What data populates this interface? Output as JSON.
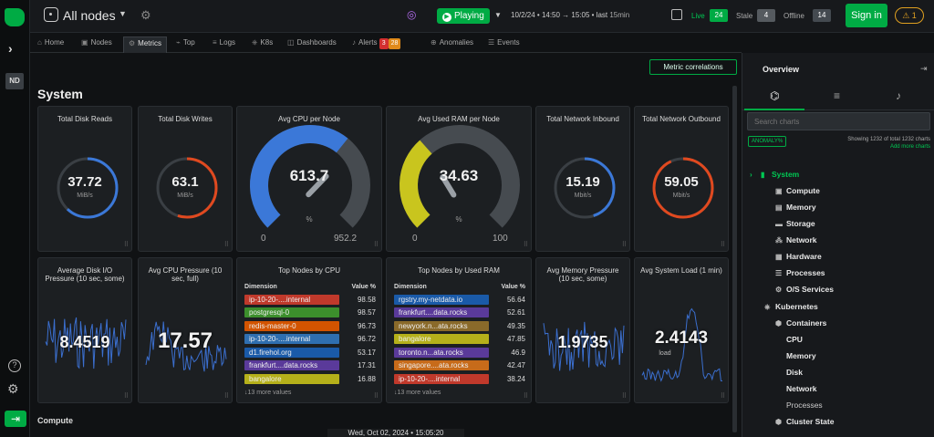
{
  "topbar": {
    "node_selector": "All nodes",
    "playing": "Playing",
    "time_range": "10/2/24 • 14:50 → 15:05 • last",
    "time_last": "15min",
    "live_label": "Live",
    "live_count": "24",
    "stale_label": "Stale",
    "stale_count": "4",
    "offline_label": "Offline",
    "offline_count": "14",
    "signin": "Sign in",
    "alerts_badge": "1"
  },
  "rail": {
    "node_badge": "ND"
  },
  "tabs": {
    "home": "Home",
    "nodes": "Nodes",
    "metrics": "Metrics",
    "top": "Top",
    "logs": "Logs",
    "k8s": "K8s",
    "dashboards": "Dashboards",
    "alerts": "Alerts",
    "alerts_critical": "3",
    "alerts_warning": "28",
    "anomalies": "Anomalies",
    "events": "Events"
  },
  "main": {
    "metric_correlations": "Metric correlations",
    "section_title": "System",
    "next_section": "Compute",
    "timestamp": "Wed, Oct 02, 2024 • 15:05:20"
  },
  "gauges": [
    {
      "title": "Total Disk Reads",
      "value": "37.72",
      "unit": "MiB/s",
      "color": "#3b78d8",
      "fraction": 0.62
    },
    {
      "title": "Total Disk Writes",
      "value": "63.1",
      "unit": "MiB/s",
      "color": "#e0491f",
      "fraction": 0.55
    },
    {
      "title": "Avg CPU per Node",
      "value": "613.7",
      "unit": "%",
      "min": "0",
      "max": "952.2",
      "color": "#3b78d8",
      "fraction": 0.644
    },
    {
      "title": "Avg Used RAM per Node",
      "value": "34.63",
      "unit": "%",
      "min": "0",
      "max": "100",
      "color": "#c9c51e",
      "fraction": 0.3463
    },
    {
      "title": "Total Network Inbound",
      "value": "15.19",
      "unit": "Mbit/s",
      "color": "#3b78d8",
      "fraction": 0.45
    },
    {
      "title": "Total Network Outbound",
      "value": "59.05",
      "unit": "Mbit/s",
      "color": "#e0491f",
      "fraction": 0.93
    }
  ],
  "sparks": [
    {
      "title": "Average Disk I/O Pressure (10 sec, some)",
      "value": "8.4519"
    },
    {
      "title": "Avg CPU Pressure (10 sec, full)",
      "value": "17.57"
    },
    {
      "title": "Avg Memory Pressure (10 sec, some)",
      "value": "1.9735"
    },
    {
      "title": "Avg System Load (1 min)",
      "value": "2.4143",
      "unit": "load"
    }
  ],
  "top_cpu": {
    "title": "Top Nodes by CPU",
    "col_dim": "Dimension",
    "col_val": "Value %",
    "rows": [
      {
        "name": "ip-10-20-....internal",
        "value": "98.58",
        "color": "#c0392b"
      },
      {
        "name": "postgresql-0",
        "value": "98.57",
        "color": "#3c8f2c"
      },
      {
        "name": "redis-master-0",
        "value": "96.73",
        "color": "#d35400"
      },
      {
        "name": "ip-10-20-....internal",
        "value": "96.72",
        "color": "#2f6fb0"
      },
      {
        "name": "d1.firehol.org",
        "value": "53.17",
        "color": "#1a5aa8"
      },
      {
        "name": "frankfurt....data.rocks",
        "value": "17.31",
        "color": "#5a3a9a"
      },
      {
        "name": "bangalore",
        "value": "16.88",
        "color": "#b5b01a"
      }
    ],
    "more": "↓13 more values"
  },
  "top_ram": {
    "title": "Top Nodes by Used RAM",
    "col_dim": "Dimension",
    "col_val": "Value %",
    "rows": [
      {
        "name": "rgstry.my-netdata.io",
        "value": "56.64",
        "color": "#1a5aa8"
      },
      {
        "name": "frankfurt....data.rocks",
        "value": "52.61",
        "color": "#5a3a9a"
      },
      {
        "name": "newyork.n...ata.rocks",
        "value": "49.35",
        "color": "#8a6a2a"
      },
      {
        "name": "bangalore",
        "value": "47.85",
        "color": "#b5b01a"
      },
      {
        "name": "toronto.n...ata.rocks",
        "value": "46.9",
        "color": "#5a3a9a"
      },
      {
        "name": "singapore....ata.rocks",
        "value": "42.47",
        "color": "#c76b1a"
      },
      {
        "name": "ip-10-20-....internal",
        "value": "38.24",
        "color": "#c0392b"
      }
    ],
    "more": "↓13 more values"
  },
  "right": {
    "overview": "Overview",
    "search_placeholder": "Search charts",
    "anomaly_tag": "ANOMALY%",
    "showing": "Showing 1232 of total 1232 charts",
    "add_more": "Add more charts",
    "tree": [
      {
        "label": "System",
        "icon": "bookmark-icon",
        "glyph": "▮"
      },
      {
        "label": "Compute",
        "icon": "cpu-icon",
        "glyph": "▣"
      },
      {
        "label": "Memory",
        "icon": "memory-icon",
        "glyph": "▤"
      },
      {
        "label": "Storage",
        "icon": "storage-icon",
        "glyph": "▬"
      },
      {
        "label": "Network",
        "icon": "network-icon",
        "glyph": "⁂"
      },
      {
        "label": "Hardware",
        "icon": "hardware-icon",
        "glyph": "▦"
      },
      {
        "label": "Processes",
        "icon": "processes-icon",
        "glyph": "☰"
      },
      {
        "label": "O/S Services",
        "icon": "services-icon",
        "glyph": "⚙"
      },
      {
        "label": "Kubernetes",
        "icon": "kubernetes-icon",
        "glyph": "⎈"
      },
      {
        "label": "Containers",
        "icon": "containers-icon",
        "glyph": "⬢"
      },
      {
        "label": "CPU"
      },
      {
        "label": "Memory"
      },
      {
        "label": "Disk"
      },
      {
        "label": "Network"
      },
      {
        "label": "Processes"
      },
      {
        "label": "Cluster State",
        "icon": "cluster-icon",
        "glyph": "⬢"
      }
    ]
  }
}
